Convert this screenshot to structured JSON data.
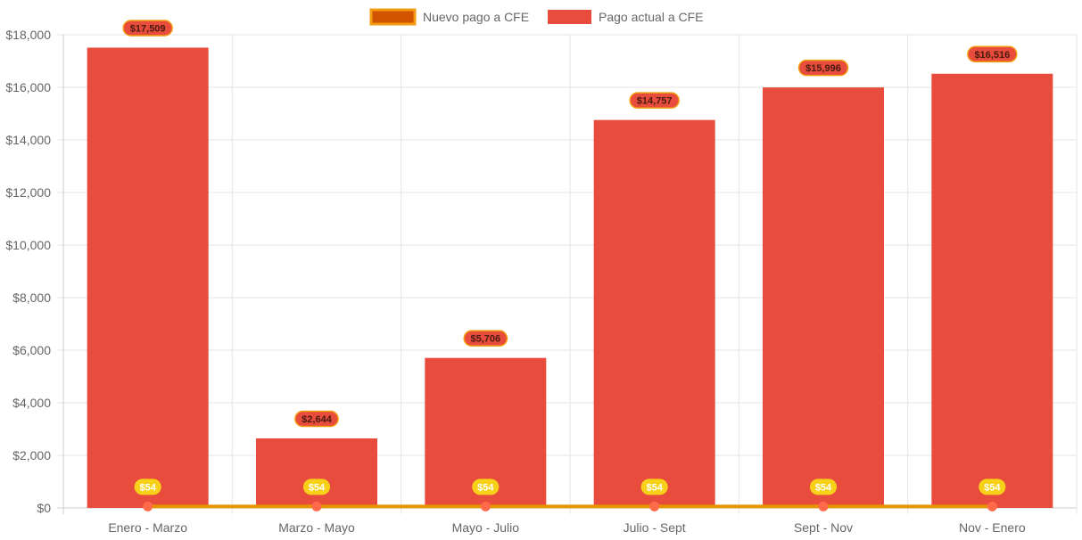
{
  "chart_data": {
    "type": "bar",
    "categories": [
      "Enero - Marzo",
      "Marzo - Mayo",
      "Mayo - Julio",
      "Julio - Sept",
      "Sept - Nov",
      "Nov - Enero"
    ],
    "series": [
      {
        "name": "Nuevo pago a CFE",
        "type": "line",
        "values": [
          54,
          54,
          54,
          54,
          54,
          54
        ],
        "labels": [
          "$54",
          "$54",
          "$54",
          "$54",
          "$54",
          "$54"
        ],
        "color": "#e69500",
        "point_color": "#ff6b4a",
        "legend_fill": "#d35400",
        "legend_border": "#f39c12",
        "label_bg": "#f7d117",
        "label_text_color": "#ffffff"
      },
      {
        "name": "Pago actual a CFE",
        "type": "bar",
        "values": [
          17509,
          2644,
          5706,
          14757,
          15996,
          16516
        ],
        "labels": [
          "$17,509",
          "$2,644",
          "$5,706",
          "$14,757",
          "$15,996",
          "$16,516"
        ],
        "color": "#e74c3c",
        "label_bg": "#e74c3c",
        "label_border": "#f39c12",
        "label_text_color": "#4a1a10"
      }
    ],
    "y_ticks": [
      "$0",
      "$2,000",
      "$4,000",
      "$6,000",
      "$8,000",
      "$10,000",
      "$12,000",
      "$14,000",
      "$16,000",
      "$18,000"
    ],
    "ylim": [
      0,
      18000
    ],
    "y_step": 2000,
    "grid": true,
    "legend_position": "top-center",
    "grid_color": "#e5e5e5",
    "axis_color": "#cccccc"
  }
}
